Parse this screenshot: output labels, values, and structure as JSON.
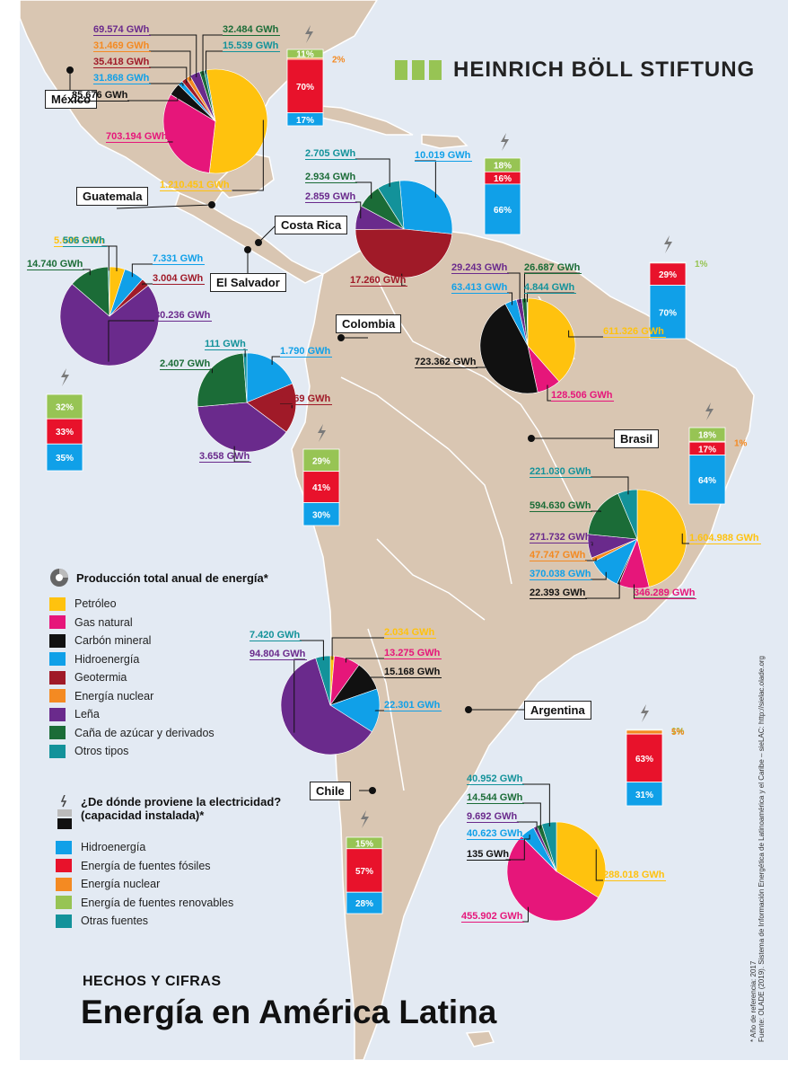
{
  "brand": {
    "name": "HEINRICH BÖLL STIFTUNG"
  },
  "footer": {
    "kicker": "HECHOS Y CIFRAS",
    "title": "Energía en América Latina"
  },
  "source_note": {
    "line1": "* Año de referencia: 2017",
    "line2": "Fuente: OLADE (2019). Sistema de Información Energética de Latinoamérica y el Caribe – sieLAC: http://sielac.olade.org"
  },
  "colors": {
    "sea": "#e3eaf3",
    "land": "#d9c6b2",
    "border": "#ffffff",
    "petroleo": "#ffc20e",
    "gas_natural": "#e6167a",
    "carbon": "#111111",
    "hidroenergia": "#10a0e8",
    "geotermia": "#a01a28",
    "nuclear": "#f48a22",
    "lena": "#6a2a8c",
    "cana": "#1b6c37",
    "otros": "#13929a",
    "elec_hidro": "#10a0e8",
    "elec_fosil": "#e8122b",
    "elec_nuclear": "#f48a22",
    "elec_renovable": "#97c454",
    "elec_otras": "#13929a"
  },
  "legend_production": {
    "title": "Producción total anual de energía*",
    "items": [
      {
        "key": "petroleo",
        "label": "Petróleo"
      },
      {
        "key": "gas_natural",
        "label": "Gas natural"
      },
      {
        "key": "carbon",
        "label": "Carbón mineral"
      },
      {
        "key": "hidroenergia",
        "label": "Hidroenergía"
      },
      {
        "key": "geotermia",
        "label": "Geotermia"
      },
      {
        "key": "nuclear",
        "label": "Energía nuclear"
      },
      {
        "key": "lena",
        "label": "Leña"
      },
      {
        "key": "cana",
        "label": "Caña de azúcar y derivados"
      },
      {
        "key": "otros",
        "label": "Otros tipos"
      }
    ]
  },
  "legend_electricity": {
    "title_line1": "¿De dónde proviene la electricidad?",
    "title_line2": "(capacidad instalada)*",
    "items": [
      {
        "key": "elec_hidro",
        "label": "Hidroenergía"
      },
      {
        "key": "elec_fosil",
        "label": "Energía de fuentes fósiles"
      },
      {
        "key": "elec_nuclear",
        "label": "Energía nuclear"
      },
      {
        "key": "elec_renovable",
        "label": "Energía de fuentes renovables"
      },
      {
        "key": "elec_otras",
        "label": "Otras fuentes"
      }
    ]
  },
  "chart_data": [
    {
      "type": "pie",
      "title": "México",
      "unit": "GWh",
      "slices": [
        {
          "key": "petroleo",
          "label": "1.210.451 GWh",
          "value": 1210451
        },
        {
          "key": "gas_natural",
          "label": "703.194 GWh",
          "value": 703194
        },
        {
          "key": "carbon",
          "label": "85.676 GWh",
          "value": 85676
        },
        {
          "key": "hidroenergia",
          "label": "31.868 GWh",
          "value": 31868
        },
        {
          "key": "geotermia",
          "label": "35.418 GWh",
          "value": 35418
        },
        {
          "key": "nuclear",
          "label": "31.469 GWh",
          "value": 31469
        },
        {
          "key": "lena",
          "label": "69.574 GWh",
          "value": 69574
        },
        {
          "key": "cana",
          "label": "32.484 GWh",
          "value": 32484
        },
        {
          "key": "otros",
          "label": "15.539 GWh",
          "value": 15539
        }
      ]
    },
    {
      "type": "pie",
      "title": "Costa Rica",
      "unit": "GWh",
      "slices": [
        {
          "key": "hidroenergia",
          "label": "10.019 GWh",
          "value": 10019
        },
        {
          "key": "geotermia",
          "label": "17.260 GWh",
          "value": 17260
        },
        {
          "key": "lena",
          "label": "2.859 GWh",
          "value": 2859
        },
        {
          "key": "cana",
          "label": "2.934 GWh",
          "value": 2934
        },
        {
          "key": "otros",
          "label": "2.705 GWh",
          "value": 2705
        }
      ]
    },
    {
      "type": "pie",
      "title": "Guatemala",
      "unit": "GWh",
      "slices": [
        {
          "key": "petroleo",
          "label": "5.639 GWh",
          "value": 5639
        },
        {
          "key": "hidroenergia",
          "label": "7.331 GWh",
          "value": 7331
        },
        {
          "key": "geotermia",
          "label": "3.004 GWh",
          "value": 3004
        },
        {
          "key": "lena",
          "label": "80.236 GWh",
          "value": 80236
        },
        {
          "key": "cana",
          "label": "14.740 GWh",
          "value": 14740
        },
        {
          "key": "otros",
          "label": "506 GWh",
          "value": 506
        }
      ]
    },
    {
      "type": "pie",
      "title": "El Salvador",
      "unit": "GWh",
      "slices": [
        {
          "key": "hidroenergia",
          "label": "1.790 GWh",
          "value": 1790
        },
        {
          "key": "geotermia",
          "label": "1.569 GWh",
          "value": 1569
        },
        {
          "key": "lena",
          "label": "3.658 GWh",
          "value": 3658
        },
        {
          "key": "cana",
          "label": "2.407 GWh",
          "value": 2407
        },
        {
          "key": "otros",
          "label": "111 GWh",
          "value": 111
        }
      ]
    },
    {
      "type": "pie",
      "title": "Colombia",
      "unit": "GWh",
      "slices": [
        {
          "key": "petroleo",
          "label": "611.326 GWh",
          "value": 611326
        },
        {
          "key": "gas_natural",
          "label": "128.506 GWh",
          "value": 128506
        },
        {
          "key": "carbon",
          "label": "723.362 GWh",
          "value": 723362
        },
        {
          "key": "hidroenergia",
          "label": "63.413 GWh",
          "value": 63413
        },
        {
          "key": "lena",
          "label": "29.243 GWh",
          "value": 29243
        },
        {
          "key": "cana",
          "label": "26.687 GWh",
          "value": 26687
        },
        {
          "key": "otros",
          "label": "4.844 GWh",
          "value": 4844
        }
      ]
    },
    {
      "type": "pie",
      "title": "Brasil",
      "unit": "GWh",
      "slices": [
        {
          "key": "petroleo",
          "label": "1.604.988 GWh",
          "value": 1604988
        },
        {
          "key": "gas_natural",
          "label": "346.289 GWh",
          "value": 346289
        },
        {
          "key": "carbon",
          "label": "22.393 GWh",
          "value": 22393
        },
        {
          "key": "hidroenergia",
          "label": "370.038 GWh",
          "value": 370038
        },
        {
          "key": "nuclear",
          "label": "47.747 GWh",
          "value": 47747
        },
        {
          "key": "lena",
          "label": "271.732 GWh",
          "value": 271732
        },
        {
          "key": "cana",
          "label": "594.630 GWh",
          "value": 594630
        },
        {
          "key": "otros",
          "label": "221.030 GWh",
          "value": 221030
        }
      ]
    },
    {
      "type": "pie",
      "title": "Chile",
      "unit": "GWh",
      "slices": [
        {
          "key": "petroleo",
          "label": "2.034 GWh",
          "value": 2034
        },
        {
          "key": "gas_natural",
          "label": "13.275 GWh",
          "value": 13275
        },
        {
          "key": "carbon",
          "label": "15.168 GWh",
          "value": 15168
        },
        {
          "key": "hidroenergia",
          "label": "22.301 GWh",
          "value": 22301
        },
        {
          "key": "lena",
          "label": "94.804 GWh",
          "value": 94804
        },
        {
          "key": "otros",
          "label": "7.420 GWh",
          "value": 7420
        }
      ]
    },
    {
      "type": "pie",
      "title": "Argentina",
      "unit": "GWh",
      "slices": [
        {
          "key": "petroleo",
          "label": "288.018 GWh",
          "value": 288018
        },
        {
          "key": "gas_natural",
          "label": "455.902 GWh",
          "value": 455902
        },
        {
          "key": "carbon",
          "label": "135 GWh",
          "value": 135
        },
        {
          "key": "hidroenergia",
          "label": "40.623 GWh",
          "value": 40623
        },
        {
          "key": "lena",
          "label": "9.692 GWh",
          "value": 9692
        },
        {
          "key": "cana",
          "label": "14.544 GWh",
          "value": 14544
        },
        {
          "key": "otros",
          "label": "40.952 GWh",
          "value": 40952
        }
      ]
    },
    {
      "type": "bar",
      "title": "México – capacidad instalada",
      "unit": "%",
      "segments": [
        {
          "key": "elec_renovable",
          "label": "11%",
          "value": 11
        },
        {
          "key": "elec_nuclear",
          "label": "2%",
          "value": 2
        },
        {
          "key": "elec_fosil",
          "label": "70%",
          "value": 70
        },
        {
          "key": "elec_hidro",
          "label": "17%",
          "value": 17
        }
      ]
    },
    {
      "type": "bar",
      "title": "Costa Rica – capacidad instalada",
      "unit": "%",
      "segments": [
        {
          "key": "elec_renovable",
          "label": "18%",
          "value": 18
        },
        {
          "key": "elec_fosil",
          "label": "16%",
          "value": 16
        },
        {
          "key": "elec_hidro",
          "label": "66%",
          "value": 66
        }
      ]
    },
    {
      "type": "bar",
      "title": "Colombia – capacidad instalada",
      "unit": "%",
      "segments": [
        {
          "key": "elec_renovable",
          "label": "1%",
          "value": 1
        },
        {
          "key": "elec_fosil",
          "label": "29%",
          "value": 29
        },
        {
          "key": "elec_hidro",
          "label": "70%",
          "value": 70
        }
      ]
    },
    {
      "type": "bar",
      "title": "Guatemala – capacidad instalada",
      "unit": "%",
      "segments": [
        {
          "key": "elec_renovable",
          "label": "32%",
          "value": 32
        },
        {
          "key": "elec_fosil",
          "label": "33%",
          "value": 33
        },
        {
          "key": "elec_hidro",
          "label": "35%",
          "value": 35
        }
      ]
    },
    {
      "type": "bar",
      "title": "El Salvador – capacidad instalada",
      "unit": "%",
      "segments": [
        {
          "key": "elec_renovable",
          "label": "29%",
          "value": 29
        },
        {
          "key": "elec_fosil",
          "label": "41%",
          "value": 41
        },
        {
          "key": "elec_hidro",
          "label": "30%",
          "value": 30
        }
      ]
    },
    {
      "type": "bar",
      "title": "Brasil – capacidad instalada",
      "unit": "%",
      "segments": [
        {
          "key": "elec_renovable",
          "label": "18%",
          "value": 18
        },
        {
          "key": "elec_nuclear",
          "label": "1%",
          "value": 1
        },
        {
          "key": "elec_fosil",
          "label": "17%",
          "value": 17
        },
        {
          "key": "elec_hidro",
          "label": "64%",
          "value": 64
        }
      ]
    },
    {
      "type": "bar",
      "title": "Argentina – capacidad instalada",
      "unit": "%",
      "segments": [
        {
          "key": "elec_renovable",
          "label": "1%",
          "value": 1
        },
        {
          "key": "elec_nuclear",
          "label": "5%",
          "value": 5
        },
        {
          "key": "elec_fosil",
          "label": "63%",
          "value": 63
        },
        {
          "key": "elec_hidro",
          "label": "31%",
          "value": 31
        }
      ]
    },
    {
      "type": "bar",
      "title": "Chile – capacidad instalada",
      "unit": "%",
      "segments": [
        {
          "key": "elec_renovable",
          "label": "15%",
          "value": 15
        },
        {
          "key": "elec_fosil",
          "label": "57%",
          "value": 57
        },
        {
          "key": "elec_hidro",
          "label": "28%",
          "value": 28
        }
      ]
    }
  ]
}
